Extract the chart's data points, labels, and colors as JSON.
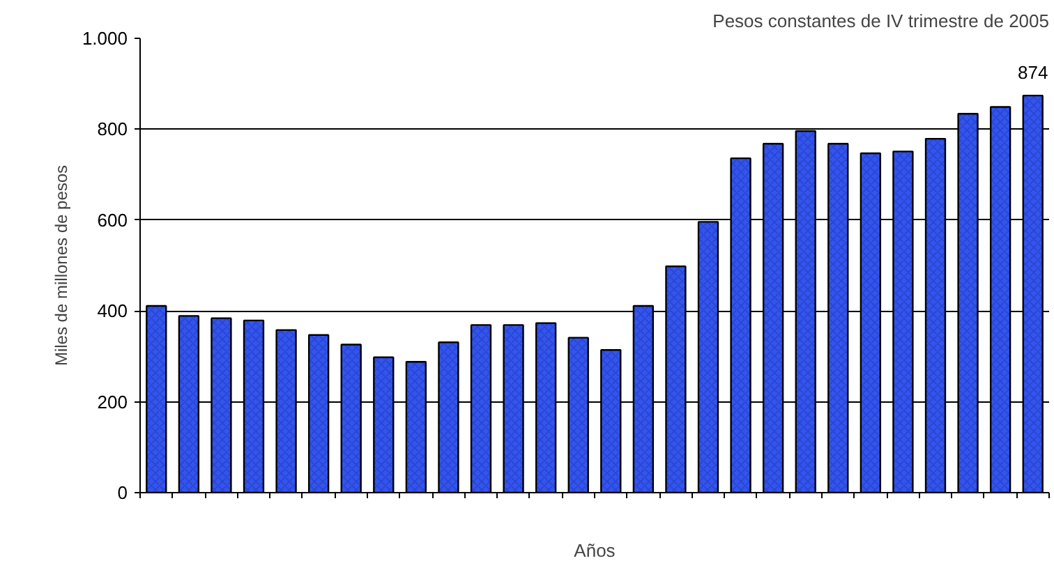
{
  "chart_data": {
    "type": "bar",
    "subtitle": "Pesos constantes de IV trimestre de 2005",
    "xlabel": "Años",
    "ylabel": "Miles de millones de pesos",
    "categories": [
      null,
      null,
      null,
      null,
      null,
      null,
      null,
      null,
      null,
      null,
      null,
      null,
      null,
      null,
      null,
      null,
      null,
      null,
      null,
      null,
      null,
      null,
      null,
      null,
      null,
      null,
      null,
      null
    ],
    "values": [
      411,
      389,
      384,
      379,
      358,
      347,
      326,
      298,
      288,
      331,
      369,
      369,
      373,
      341,
      314,
      411,
      498,
      596,
      736,
      768,
      796,
      768,
      747,
      751,
      779,
      834,
      849,
      874
    ],
    "value_labels": [
      null,
      null,
      null,
      null,
      null,
      null,
      null,
      null,
      null,
      null,
      null,
      null,
      null,
      null,
      null,
      null,
      null,
      null,
      null,
      null,
      null,
      null,
      null,
      null,
      null,
      null,
      null,
      "874"
    ],
    "color": "#3355ee",
    "ylim": [
      0,
      1000
    ],
    "yticks": [
      0,
      200,
      400,
      600,
      800,
      {
        "value": 1000,
        "label": "1.000"
      }
    ],
    "grid": "y",
    "tick_labels": "y"
  }
}
